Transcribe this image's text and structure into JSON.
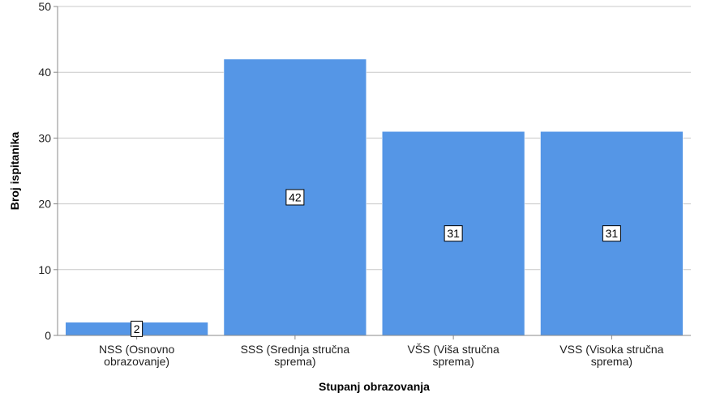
{
  "chart_data": {
    "type": "bar",
    "categories": [
      [
        "NSS (Osnovno",
        "obrazovanje)"
      ],
      [
        "SSS (Srednja stručna",
        "sprema)"
      ],
      [
        "VŠS (Viša stručna",
        "sprema)"
      ],
      [
        "VSS (Visoka stručna",
        "sprema)"
      ]
    ],
    "values": [
      2,
      42,
      31,
      31
    ],
    "data_labels": [
      "2",
      "42",
      "31",
      "31"
    ],
    "title": "",
    "xlabel": "Stupanj obrazovanja",
    "ylabel": "Broj ispitanika",
    "ylim": [
      0,
      50
    ],
    "yticks": [
      0,
      10,
      20,
      30,
      40,
      50
    ],
    "grid": true,
    "bar_color": "#5596e6"
  }
}
